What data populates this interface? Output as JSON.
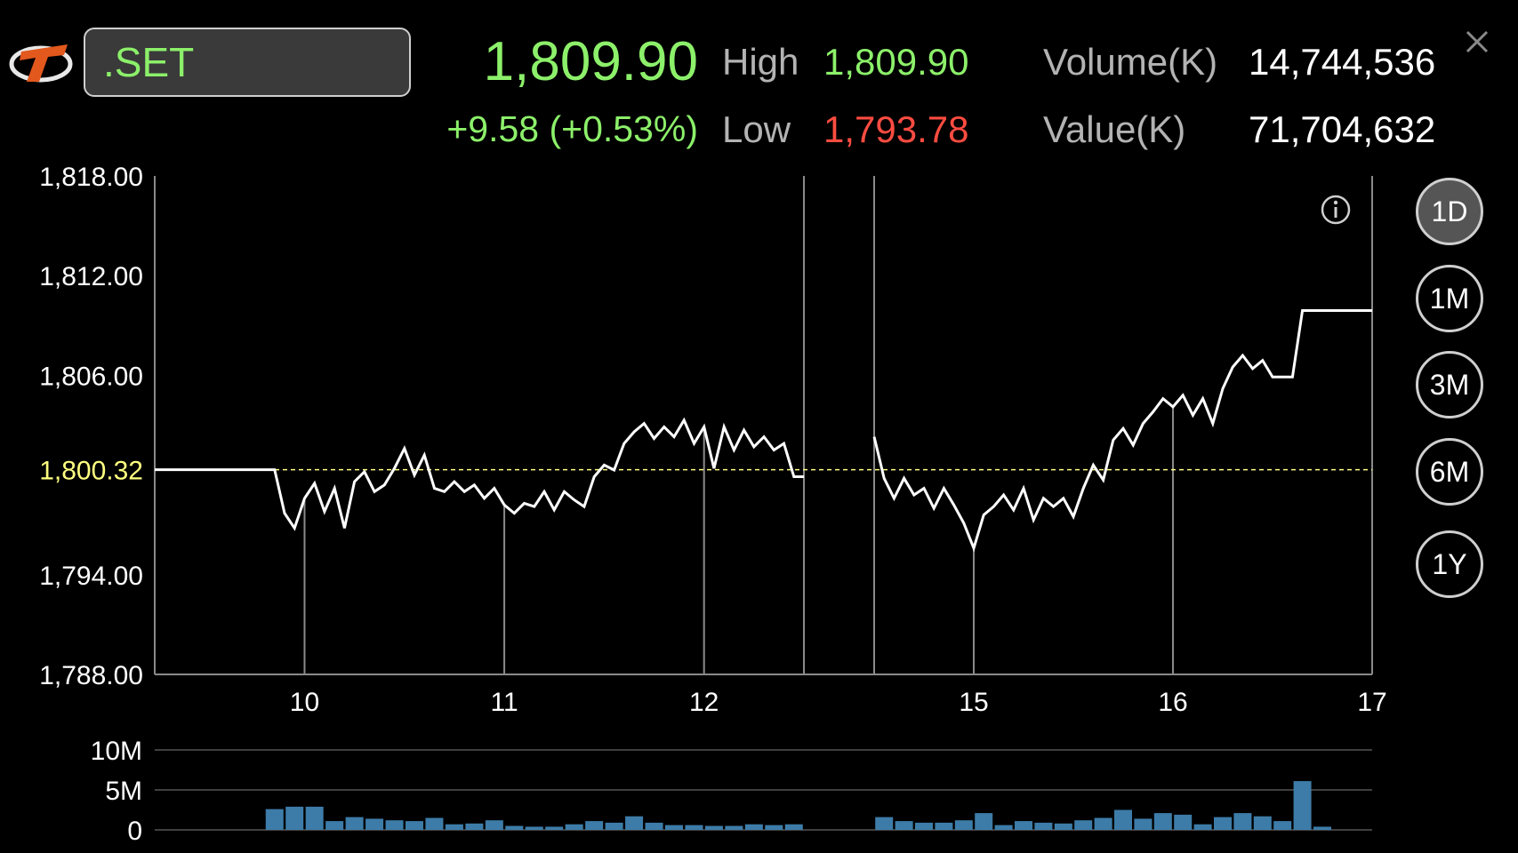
{
  "header": {
    "symbol": ".SET",
    "last_price": "1,809.90",
    "change": "+9.58 (+0.53%)",
    "high_label": "High",
    "high_value": "1,809.90",
    "low_label": "Low",
    "low_value": "1,793.78",
    "volume_label": "Volume(K)",
    "volume_value": "14,744,536",
    "value_label": "Value(K)",
    "value_value": "71,704,632"
  },
  "periods": [
    {
      "label": "1D",
      "active": true
    },
    {
      "label": "1M",
      "active": false
    },
    {
      "label": "3M",
      "active": false
    },
    {
      "label": "6M",
      "active": false
    },
    {
      "label": "1Y",
      "active": false
    }
  ],
  "colors": {
    "up": "#8cf06a",
    "down": "#ff4c41",
    "prev_close": "#ffff80",
    "volume_bar": "#3d7ca8"
  },
  "chart_data": {
    "type": "line",
    "ylim": [
      1788,
      1818
    ],
    "y_ticks": [
      "1,818.00",
      "1,812.00",
      "1,806.00",
      "1,800.32",
      "1,794.00",
      "1,788.00"
    ],
    "y_tick_values": [
      1818,
      1812,
      1806,
      1800.32,
      1794,
      1788
    ],
    "x_ticks": [
      {
        "label": "10",
        "x": 10
      },
      {
        "label": "11",
        "x": 11
      },
      {
        "label": "12",
        "x": 12
      },
      {
        "label": "15",
        "x": 15
      },
      {
        "label": "16",
        "x": 16
      },
      {
        "label": "17",
        "x": 17
      }
    ],
    "xlim": [
      9.25,
      17
    ],
    "lunch_break": [
      12.5,
      14.5
    ],
    "prev_close": 1800.32,
    "series": [
      {
        "values": [
          [
            9.25,
            1800.32
          ],
          [
            9.85,
            1800.32
          ],
          [
            9.9,
            1797.7
          ],
          [
            9.95,
            1796.8
          ],
          [
            10,
            1798.6
          ],
          [
            10.05,
            1799.5
          ],
          [
            10.1,
            1797.8
          ],
          [
            10.15,
            1799.2
          ],
          [
            10.2,
            1796.8
          ],
          [
            10.25,
            1799.6
          ],
          [
            10.3,
            1800.2
          ],
          [
            10.35,
            1799
          ],
          [
            10.4,
            1799.4
          ],
          [
            10.45,
            1800.4
          ],
          [
            10.5,
            1801.6
          ],
          [
            10.55,
            1800
          ],
          [
            10.6,
            1801.2
          ],
          [
            10.65,
            1799.2
          ],
          [
            10.7,
            1799
          ],
          [
            10.75,
            1799.6
          ],
          [
            10.8,
            1799
          ],
          [
            10.85,
            1799.4
          ],
          [
            10.9,
            1798.6
          ],
          [
            10.95,
            1799.2
          ],
          [
            11,
            1798.2
          ],
          [
            11.05,
            1797.7
          ],
          [
            11.1,
            1798.3
          ],
          [
            11.15,
            1798.1
          ],
          [
            11.2,
            1799
          ],
          [
            11.25,
            1797.9
          ],
          [
            11.3,
            1799
          ],
          [
            11.35,
            1798.5
          ],
          [
            11.4,
            1798.1
          ],
          [
            11.45,
            1799.9
          ],
          [
            11.5,
            1800.6
          ],
          [
            11.55,
            1800.3
          ],
          [
            11.6,
            1801.9
          ],
          [
            11.65,
            1802.6
          ],
          [
            11.7,
            1803.1
          ],
          [
            11.75,
            1802.2
          ],
          [
            11.8,
            1802.9
          ],
          [
            11.85,
            1802.3
          ],
          [
            11.9,
            1803.3
          ],
          [
            11.95,
            1801.9
          ],
          [
            12,
            1802.9
          ],
          [
            12.05,
            1800.4
          ],
          [
            12.1,
            1802.9
          ],
          [
            12.15,
            1801.5
          ],
          [
            12.2,
            1802.7
          ],
          [
            12.25,
            1801.7
          ],
          [
            12.3,
            1802.3
          ],
          [
            12.35,
            1801.5
          ],
          [
            12.4,
            1801.9
          ],
          [
            12.45,
            1799.9
          ],
          [
            12.5,
            1799.9
          ]
        ]
      },
      {
        "values": [
          [
            14.5,
            1802.3
          ],
          [
            14.55,
            1799.8
          ],
          [
            14.6,
            1798.6
          ],
          [
            14.65,
            1799.8
          ],
          [
            14.7,
            1798.8
          ],
          [
            14.75,
            1799.2
          ],
          [
            14.8,
            1798
          ],
          [
            14.85,
            1799.2
          ],
          [
            14.9,
            1798.2
          ],
          [
            14.95,
            1797.1
          ],
          [
            15,
            1795.6
          ],
          [
            15.05,
            1797.6
          ],
          [
            15.1,
            1798.1
          ],
          [
            15.15,
            1798.8
          ],
          [
            15.2,
            1797.9
          ],
          [
            15.25,
            1799.2
          ],
          [
            15.3,
            1797.3
          ],
          [
            15.35,
            1798.6
          ],
          [
            15.4,
            1798.1
          ],
          [
            15.45,
            1798.6
          ],
          [
            15.5,
            1797.5
          ],
          [
            15.55,
            1799.2
          ],
          [
            15.6,
            1800.6
          ],
          [
            15.65,
            1799.7
          ],
          [
            15.7,
            1802.1
          ],
          [
            15.75,
            1802.8
          ],
          [
            15.8,
            1801.8
          ],
          [
            15.85,
            1803.1
          ],
          [
            15.9,
            1803.8
          ],
          [
            15.95,
            1804.6
          ],
          [
            16,
            1804.1
          ],
          [
            16.05,
            1804.8
          ],
          [
            16.1,
            1803.6
          ],
          [
            16.15,
            1804.6
          ],
          [
            16.2,
            1803.1
          ],
          [
            16.25,
            1805.2
          ],
          [
            16.3,
            1806.5
          ],
          [
            16.35,
            1807.2
          ],
          [
            16.4,
            1806.4
          ],
          [
            16.45,
            1806.9
          ],
          [
            16.5,
            1805.9
          ],
          [
            16.55,
            1805.9
          ],
          [
            16.6,
            1805.9
          ],
          [
            16.65,
            1809.9
          ],
          [
            17,
            1809.9
          ]
        ]
      }
    ],
    "volume": {
      "ylim": [
        0,
        10
      ],
      "y_ticks": [
        "10M",
        "5M",
        "0"
      ],
      "y_tick_values": [
        10,
        5,
        0
      ],
      "bars": [
        [
          9.85,
          2.6
        ],
        [
          9.95,
          2.9
        ],
        [
          10.05,
          2.9
        ],
        [
          10.15,
          1.1
        ],
        [
          10.25,
          1.6
        ],
        [
          10.35,
          1.4
        ],
        [
          10.45,
          1.2
        ],
        [
          10.55,
          1.1
        ],
        [
          10.65,
          1.5
        ],
        [
          10.75,
          0.7
        ],
        [
          10.85,
          0.8
        ],
        [
          10.95,
          1.2
        ],
        [
          11.05,
          0.5
        ],
        [
          11.15,
          0.4
        ],
        [
          11.25,
          0.4
        ],
        [
          11.35,
          0.7
        ],
        [
          11.45,
          1.1
        ],
        [
          11.55,
          0.9
        ],
        [
          11.65,
          1.7
        ],
        [
          11.75,
          0.9
        ],
        [
          11.85,
          0.6
        ],
        [
          11.95,
          0.6
        ],
        [
          12.05,
          0.5
        ],
        [
          12.15,
          0.5
        ],
        [
          12.25,
          0.7
        ],
        [
          12.35,
          0.6
        ],
        [
          12.45,
          0.7
        ],
        [
          14.55,
          1.6
        ],
        [
          14.65,
          1.1
        ],
        [
          14.75,
          0.9
        ],
        [
          14.85,
          0.9
        ],
        [
          14.95,
          1.2
        ],
        [
          15.05,
          2.1
        ],
        [
          15.15,
          0.6
        ],
        [
          15.25,
          1.1
        ],
        [
          15.35,
          0.9
        ],
        [
          15.45,
          0.8
        ],
        [
          15.55,
          1.2
        ],
        [
          15.65,
          1.5
        ],
        [
          15.75,
          2.5
        ],
        [
          15.85,
          1.4
        ],
        [
          15.95,
          2.1
        ],
        [
          16.05,
          1.9
        ],
        [
          16.15,
          0.7
        ],
        [
          16.25,
          1.6
        ],
        [
          16.35,
          2.1
        ],
        [
          16.45,
          1.7
        ],
        [
          16.55,
          1.1
        ],
        [
          16.65,
          6.1
        ],
        [
          16.75,
          0.4
        ]
      ]
    }
  }
}
